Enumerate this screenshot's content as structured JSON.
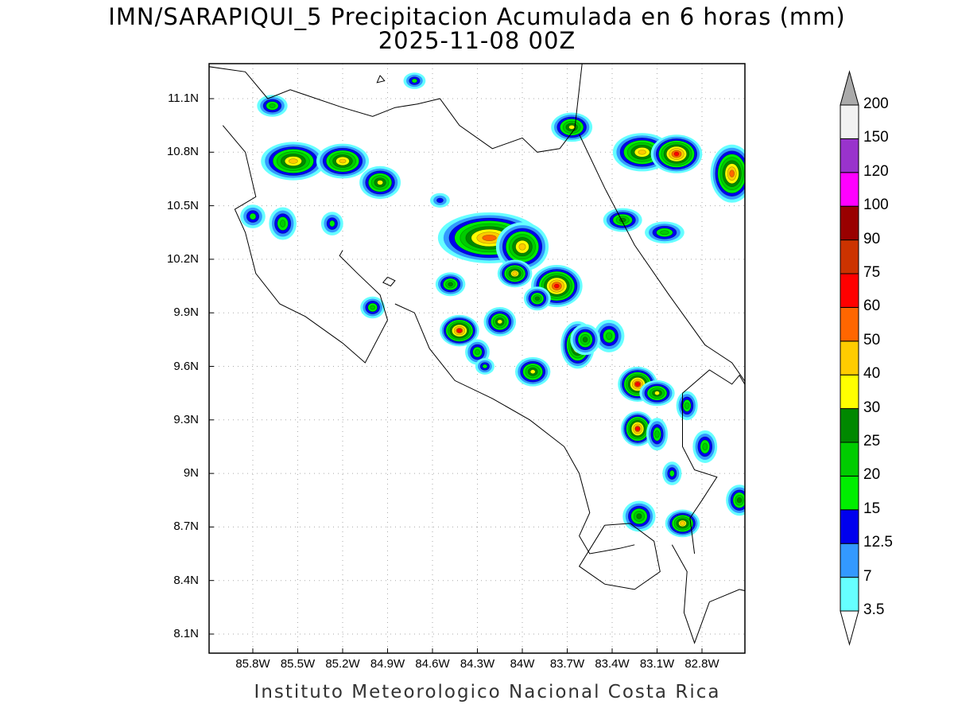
{
  "title": {
    "line1": "IMN/SARAPIQUI_5 Precipitacion Acumulada en 6 horas (mm)",
    "line2": "2025-11-08 00Z"
  },
  "footer": "Instituto Meteorologico Nacional Costa Rica",
  "map": {
    "lat_ticks": [
      {
        "value": 11.1,
        "label": "11.1N"
      },
      {
        "value": 10.8,
        "label": "10.8N"
      },
      {
        "value": 10.5,
        "label": "10.5N"
      },
      {
        "value": 10.2,
        "label": "10.2N"
      },
      {
        "value": 9.9,
        "label": "9.9N"
      },
      {
        "value": 9.6,
        "label": "9.6N"
      },
      {
        "value": 9.3,
        "label": "9.3N"
      },
      {
        "value": 9.0,
        "label": "9N"
      },
      {
        "value": 8.7,
        "label": "8.7N"
      },
      {
        "value": 8.4,
        "label": "8.4N"
      },
      {
        "value": 8.1,
        "label": "8.1N"
      }
    ],
    "lon_ticks": [
      {
        "value": -85.8,
        "label": "85.8W"
      },
      {
        "value": -85.5,
        "label": "85.5W"
      },
      {
        "value": -85.2,
        "label": "85.2W"
      },
      {
        "value": -84.9,
        "label": "84.9W"
      },
      {
        "value": -84.6,
        "label": "84.6W"
      },
      {
        "value": -84.3,
        "label": "84.3W"
      },
      {
        "value": -84.0,
        "label": "84W"
      },
      {
        "value": -83.7,
        "label": "83.7W"
      },
      {
        "value": -83.4,
        "label": "83.4W"
      },
      {
        "value": -83.1,
        "label": "83.1W"
      },
      {
        "value": -82.8,
        "label": "82.8W"
      }
    ],
    "lon_range": [
      -86.0,
      -82.5
    ],
    "lat_range": [
      8.0,
      11.3
    ],
    "grid": true
  },
  "colorbar": {
    "levels": [
      "3.5",
      "7",
      "12.5",
      "15",
      "20",
      "25",
      "30",
      "40",
      "50",
      "60",
      "75",
      "90",
      "100",
      "120",
      "150",
      "200"
    ],
    "colors": [
      "#ffffff",
      "#66ffff",
      "#3399ff",
      "#0000ee",
      "#00ee00",
      "#00cc00",
      "#008800",
      "#ffff00",
      "#ffcc00",
      "#ff6600",
      "#ff0000",
      "#cc3300",
      "#990000",
      "#ff00ff",
      "#9933cc",
      "#f2f2f2",
      "#aaaaaa"
    ]
  },
  "rain_cells": [
    {
      "lon": -85.53,
      "lat": 10.75,
      "level": 8,
      "rx": 0.16,
      "ry": 0.07
    },
    {
      "lon": -85.2,
      "lat": 10.75,
      "level": 8,
      "rx": 0.12,
      "ry": 0.06
    },
    {
      "lon": -84.95,
      "lat": 10.63,
      "level": 7,
      "rx": 0.09,
      "ry": 0.06
    },
    {
      "lon": -85.67,
      "lat": 11.06,
      "level": 5,
      "rx": 0.07,
      "ry": 0.04
    },
    {
      "lon": -84.22,
      "lat": 10.32,
      "level": 9,
      "rx": 0.28,
      "ry": 0.1
    },
    {
      "lon": -84.0,
      "lat": 10.27,
      "level": 8,
      "rx": 0.12,
      "ry": 0.1
    },
    {
      "lon": -83.77,
      "lat": 10.05,
      "level": 10,
      "rx": 0.1,
      "ry": 0.07
    },
    {
      "lon": -84.42,
      "lat": 9.8,
      "level": 10,
      "rx": 0.06,
      "ry": 0.04
    },
    {
      "lon": -84.15,
      "lat": 9.85,
      "level": 7,
      "rx": 0.06,
      "ry": 0.05
    },
    {
      "lon": -83.63,
      "lat": 9.72,
      "level": 9,
      "rx": 0.05,
      "ry": 0.09
    },
    {
      "lon": -83.93,
      "lat": 9.57,
      "level": 7,
      "rx": 0.07,
      "ry": 0.05
    },
    {
      "lon": -83.23,
      "lat": 9.5,
      "level": 10,
      "rx": 0.06,
      "ry": 0.05
    },
    {
      "lon": -83.1,
      "lat": 9.45,
      "level": 7,
      "rx": 0.07,
      "ry": 0.04
    },
    {
      "lon": -83.23,
      "lat": 9.25,
      "level": 10,
      "rx": 0.04,
      "ry": 0.05
    },
    {
      "lon": -83.2,
      "lat": 10.8,
      "level": 8,
      "rx": 0.14,
      "ry": 0.07
    },
    {
      "lon": -82.97,
      "lat": 10.79,
      "level": 10,
      "rx": 0.1,
      "ry": 0.06
    },
    {
      "lon": -82.6,
      "lat": 10.68,
      "level": 9,
      "rx": 0.08,
      "ry": 0.12
    },
    {
      "lon": -83.67,
      "lat": 10.94,
      "level": 7,
      "rx": 0.09,
      "ry": 0.05
    },
    {
      "lon": -83.33,
      "lat": 10.42,
      "level": 6,
      "rx": 0.09,
      "ry": 0.04
    },
    {
      "lon": -83.05,
      "lat": 10.35,
      "level": 5,
      "rx": 0.1,
      "ry": 0.04
    },
    {
      "lon": -83.42,
      "lat": 9.77,
      "level": 5,
      "rx": 0.07,
      "ry": 0.07
    },
    {
      "lon": -83.58,
      "lat": 9.75,
      "level": 6,
      "rx": 0.06,
      "ry": 0.06
    },
    {
      "lon": -82.93,
      "lat": 8.72,
      "level": 8,
      "rx": 0.06,
      "ry": 0.04
    },
    {
      "lon": -83.22,
      "lat": 8.76,
      "level": 6,
      "rx": 0.07,
      "ry": 0.06
    },
    {
      "lon": -82.78,
      "lat": 9.15,
      "level": 5,
      "rx": 0.05,
      "ry": 0.07
    },
    {
      "lon": -82.55,
      "lat": 8.85,
      "level": 6,
      "rx": 0.05,
      "ry": 0.06
    },
    {
      "lon": -84.48,
      "lat": 10.06,
      "level": 6,
      "rx": 0.06,
      "ry": 0.04
    },
    {
      "lon": -85.0,
      "lat": 9.93,
      "level": 5,
      "rx": 0.05,
      "ry": 0.04
    },
    {
      "lon": -85.6,
      "lat": 10.4,
      "level": 5,
      "rx": 0.06,
      "ry": 0.07
    },
    {
      "lon": -85.8,
      "lat": 10.44,
      "level": 4,
      "rx": 0.06,
      "ry": 0.05
    },
    {
      "lon": -84.72,
      "lat": 11.2,
      "level": 4,
      "rx": 0.05,
      "ry": 0.03
    },
    {
      "lon": -84.3,
      "lat": 9.68,
      "level": 5,
      "rx": 0.05,
      "ry": 0.05
    },
    {
      "lon": -83.1,
      "lat": 9.22,
      "level": 5,
      "rx": 0.04,
      "ry": 0.07
    },
    {
      "lon": -82.9,
      "lat": 9.38,
      "level": 5,
      "rx": 0.04,
      "ry": 0.06
    },
    {
      "lon": -83.0,
      "lat": 9.0,
      "level": 4,
      "rx": 0.04,
      "ry": 0.05
    },
    {
      "lon": -84.05,
      "lat": 10.12,
      "level": 8,
      "rx": 0.06,
      "ry": 0.04
    },
    {
      "lon": -83.9,
      "lat": 9.98,
      "level": 6,
      "rx": 0.05,
      "ry": 0.04
    },
    {
      "lon": -85.27,
      "lat": 10.4,
      "level": 4,
      "rx": 0.05,
      "ry": 0.05
    },
    {
      "lon": -84.55,
      "lat": 10.53,
      "level": 3,
      "rx": 0.05,
      "ry": 0.03
    },
    {
      "lon": -84.25,
      "lat": 9.6,
      "level": 4,
      "rx": 0.04,
      "ry": 0.03
    }
  ]
}
